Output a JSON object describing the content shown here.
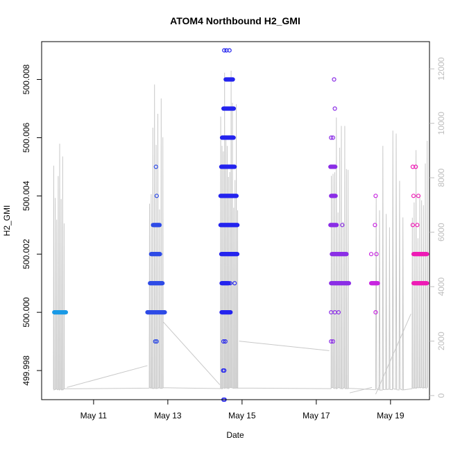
{
  "chart_data": {
    "type": "scatter",
    "title": "ATOM4 Northbound H2_GMI",
    "xlabel": "Date",
    "ylabel": "H2_GMI",
    "xlim": [
      9.6,
      20.05
    ],
    "ylim": [
      499.997,
      500.0093
    ],
    "y2lim": [
      -150,
      13000
    ],
    "x_ticks": [
      {
        "value": 11,
        "label": "May 11"
      },
      {
        "value": 13,
        "label": "May 13"
      },
      {
        "value": 15,
        "label": "May 15"
      },
      {
        "value": 17,
        "label": "May 17"
      },
      {
        "value": 19,
        "label": "May 19"
      }
    ],
    "y_ticks": [
      {
        "value": 499.998,
        "label": "499.998"
      },
      {
        "value": 500.0,
        "label": "500.000"
      },
      {
        "value": 500.002,
        "label": "500.002"
      },
      {
        "value": 500.004,
        "label": "500.004"
      },
      {
        "value": 500.006,
        "label": "500.006"
      },
      {
        "value": 500.008,
        "label": "500.008"
      }
    ],
    "y2_ticks": [
      {
        "value": 0,
        "label": "0"
      },
      {
        "value": 2000,
        "label": "2000"
      },
      {
        "value": 4000,
        "label": "4000"
      },
      {
        "value": 6000,
        "label": "6000"
      },
      {
        "value": 8000,
        "label": "8000"
      },
      {
        "value": 10000,
        "label": "10000"
      },
      {
        "value": 12000,
        "label": "12000"
      }
    ],
    "series": [
      {
        "color": "#1a9ae6",
        "points": [
          [
            9.95,
            500.0
          ]
        ],
        "runs": [
          [
            9.94,
            10.26,
            500.0
          ]
        ]
      },
      {
        "color": "#2e4be6",
        "points": [
          [
            12.66,
            499.999
          ],
          [
            12.7,
            499.999
          ],
          [
            12.68,
            500.005
          ],
          [
            12.7,
            500.004
          ]
        ],
        "runs": [
          [
            12.45,
            12.92,
            500.0
          ],
          [
            12.52,
            12.86,
            500.001
          ],
          [
            12.55,
            12.8,
            500.002
          ],
          [
            12.6,
            12.78,
            500.003
          ]
        ]
      },
      {
        "color": "#2424ee",
        "points": [
          [
            14.5,
            499.997
          ],
          [
            14.53,
            499.997
          ],
          [
            14.49,
            499.998
          ],
          [
            14.52,
            499.998
          ],
          [
            14.5,
            499.999
          ],
          [
            14.55,
            499.999
          ],
          [
            14.52,
            500.009
          ],
          [
            14.58,
            500.009
          ],
          [
            14.66,
            500.009
          ],
          [
            14.68,
            500.001
          ],
          [
            14.8,
            500.001
          ]
        ],
        "runs": [
          [
            14.45,
            14.7,
            500.0
          ],
          [
            14.45,
            14.65,
            500.001
          ],
          [
            14.44,
            14.88,
            500.002
          ],
          [
            14.42,
            14.88,
            500.003
          ],
          [
            14.42,
            14.86,
            500.004
          ],
          [
            14.44,
            14.8,
            500.005
          ],
          [
            14.46,
            14.78,
            500.006
          ],
          [
            14.5,
            14.78,
            500.007
          ],
          [
            14.56,
            14.76,
            500.008
          ]
        ]
      },
      {
        "color": "#8b2ee6",
        "points": [
          [
            17.4,
            499.999
          ],
          [
            17.45,
            499.999
          ],
          [
            17.4,
            500.0
          ],
          [
            17.5,
            500.0
          ],
          [
            17.6,
            500.0
          ],
          [
            17.4,
            500.006
          ],
          [
            17.45,
            500.006
          ],
          [
            17.5,
            500.007
          ],
          [
            17.48,
            500.008
          ],
          [
            17.7,
            500.003
          ],
          [
            17.82,
            500.001
          ]
        ],
        "runs": [
          [
            17.4,
            17.88,
            500.001
          ],
          [
            17.42,
            17.82,
            500.002
          ],
          [
            17.38,
            17.55,
            500.003
          ],
          [
            17.4,
            17.52,
            500.004
          ],
          [
            17.38,
            17.52,
            500.005
          ]
        ]
      },
      {
        "color": "#c726e0",
        "points": [
          [
            18.48,
            500.002
          ],
          [
            18.62,
            500.002
          ],
          [
            18.58,
            500.003
          ],
          [
            18.6,
            500.004
          ],
          [
            18.6,
            500.0
          ]
        ],
        "runs": [
          [
            18.48,
            18.66,
            500.001
          ]
        ]
      },
      {
        "color": "#ee1bb5",
        "points": [
          [
            19.6,
            500.005
          ],
          [
            19.68,
            500.005
          ],
          [
            19.6,
            500.003
          ],
          [
            19.72,
            500.003
          ],
          [
            19.62,
            500.004
          ],
          [
            19.75,
            500.004
          ]
        ],
        "runs": [
          [
            19.62,
            19.98,
            500.001
          ],
          [
            19.62,
            19.98,
            500.002
          ]
        ]
      }
    ],
    "secondary_line": {
      "color": "#c8c8c8",
      "blocks": [
        {
          "x0": 9.92,
          "x1": 10.22,
          "min": 200,
          "max": 10900,
          "step": 0.04
        },
        {
          "x0": 12.5,
          "x1": 12.88,
          "min": 250,
          "max": 11500,
          "step": 0.045
        },
        {
          "x0": 14.42,
          "x1": 14.9,
          "min": 250,
          "max": 12100,
          "step": 0.035
        },
        {
          "x0": 17.4,
          "x1": 17.88,
          "min": 250,
          "max": 10700,
          "step": 0.045
        },
        {
          "x0": 18.6,
          "x1": 19.35,
          "min": 200,
          "max": 11000,
          "step": 0.09
        },
        {
          "x0": 19.58,
          "x1": 19.98,
          "min": 250,
          "max": 9400,
          "step": 0.05
        }
      ],
      "connectors": [
        [
          10.28,
          300,
          12.45,
          1100
        ],
        [
          12.88,
          2700,
          14.4,
          400
        ],
        [
          14.92,
          2000,
          17.35,
          1650
        ],
        [
          17.9,
          100,
          18.5,
          300
        ],
        [
          18.6,
          50,
          19.55,
          3000
        ]
      ]
    }
  }
}
